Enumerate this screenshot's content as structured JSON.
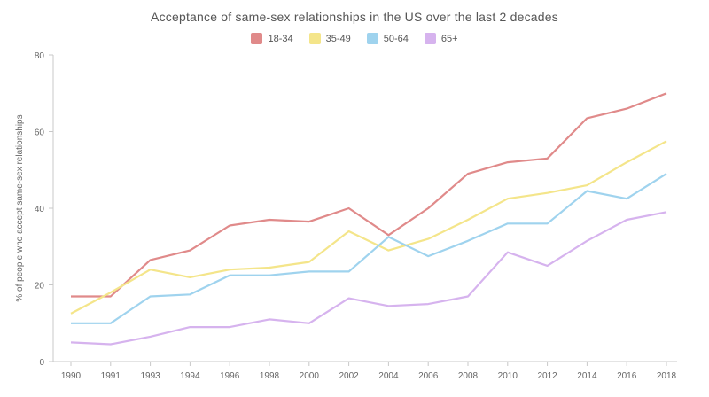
{
  "chart_data": {
    "type": "line",
    "title": "Acceptance of same-sex relationships in the US over the last 2 decades",
    "xlabel": "",
    "ylabel": "% of people who accept same-sex relationships",
    "ylim": [
      0,
      80
    ],
    "yticks": [
      "0",
      "20",
      "40",
      "60",
      "80"
    ],
    "categories": [
      "1990",
      "1991",
      "1993",
      "1994",
      "1996",
      "1998",
      "2000",
      "2002",
      "2004",
      "2006",
      "2008",
      "2010",
      "2012",
      "2014",
      "2016",
      "2018"
    ],
    "legend_position": "top",
    "grid": false,
    "series": [
      {
        "name": "18-34",
        "color": "#e08a8a",
        "values": [
          17,
          17,
          26.5,
          29,
          35.5,
          37,
          36.5,
          40,
          33,
          40,
          49,
          52,
          53,
          63.5,
          66,
          70
        ]
      },
      {
        "name": "35-49",
        "color": "#f4e58a",
        "values": [
          12.5,
          18,
          24,
          22,
          24,
          24.5,
          26,
          34,
          29,
          32,
          37,
          42.5,
          44,
          46,
          52,
          57.5
        ]
      },
      {
        "name": "50-64",
        "color": "#9fd3ee",
        "values": [
          10,
          10,
          17,
          17.5,
          22.5,
          22.5,
          23.5,
          23.5,
          32.5,
          27.5,
          31.5,
          36,
          36,
          44.5,
          42.5,
          49
        ]
      },
      {
        "name": "65+",
        "color": "#d6b3ee",
        "values": [
          5,
          4.5,
          6.5,
          9,
          9,
          11,
          10,
          16.5,
          14.5,
          15,
          17,
          28.5,
          25,
          31.5,
          37,
          39
        ]
      }
    ]
  }
}
